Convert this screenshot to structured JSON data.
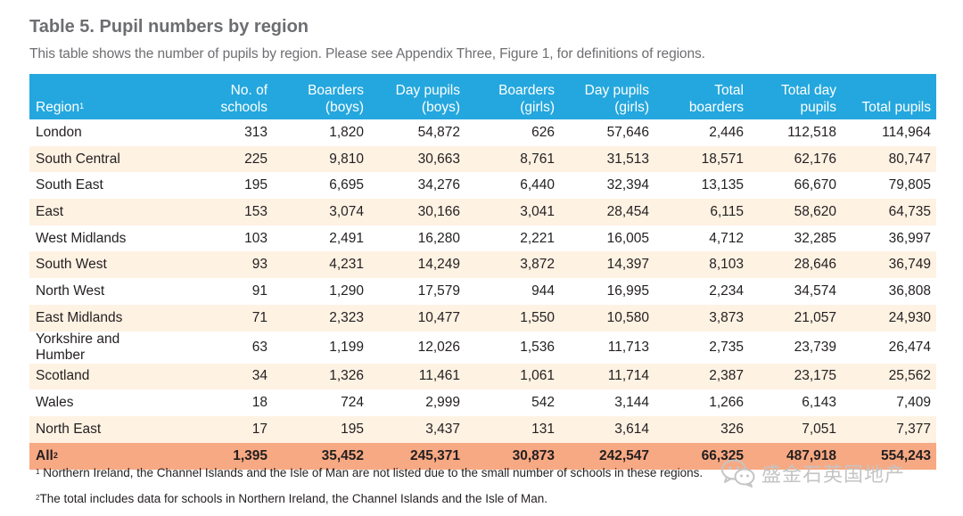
{
  "title": "Table 5. Pupil numbers by region",
  "subtitle": "This table shows the number of pupils by region. Please see Appendix Three, Figure 1, for definitions of regions.",
  "header": {
    "region": "Region",
    "region_sup": "1",
    "schools_line1": "No. of",
    "schools_line2": "schools",
    "boarders_boys_line1": "Boarders",
    "boarders_boys_line2": "(boys)",
    "day_boys_line1": "Day pupils",
    "day_boys_line2": "(boys)",
    "boarders_girls_line1": "Boarders",
    "boarders_girls_line2": "(girls)",
    "day_girls_line1": "Day pupils",
    "day_girls_line2": "(girls)",
    "total_boarders_line1": "Total",
    "total_boarders_line2": "boarders",
    "total_day_line1": "Total day",
    "total_day_line2": "pupils",
    "total_pupils": "Total pupils"
  },
  "rows": [
    {
      "region": "London",
      "schools": "313",
      "boarders_boys": "1,820",
      "day_boys": "54,872",
      "boarders_girls": "626",
      "day_girls": "57,646",
      "total_boarders": "2,446",
      "total_day": "112,518",
      "total_pupils": "114,964"
    },
    {
      "region": "South Central",
      "schools": "225",
      "boarders_boys": "9,810",
      "day_boys": "30,663",
      "boarders_girls": "8,761",
      "day_girls": "31,513",
      "total_boarders": "18,571",
      "total_day": "62,176",
      "total_pupils": "80,747"
    },
    {
      "region": "South East",
      "schools": "195",
      "boarders_boys": "6,695",
      "day_boys": "34,276",
      "boarders_girls": "6,440",
      "day_girls": "32,394",
      "total_boarders": "13,135",
      "total_day": "66,670",
      "total_pupils": "79,805"
    },
    {
      "region": "East",
      "schools": "153",
      "boarders_boys": "3,074",
      "day_boys": "30,166",
      "boarders_girls": "3,041",
      "day_girls": "28,454",
      "total_boarders": "6,115",
      "total_day": "58,620",
      "total_pupils": "64,735"
    },
    {
      "region": "West Midlands",
      "schools": "103",
      "boarders_boys": "2,491",
      "day_boys": "16,280",
      "boarders_girls": "2,221",
      "day_girls": "16,005",
      "total_boarders": "4,712",
      "total_day": "32,285",
      "total_pupils": "36,997"
    },
    {
      "region": "South West",
      "schools": "93",
      "boarders_boys": "4,231",
      "day_boys": "14,249",
      "boarders_girls": "3,872",
      "day_girls": "14,397",
      "total_boarders": "8,103",
      "total_day": "28,646",
      "total_pupils": "36,749"
    },
    {
      "region": "North West",
      "schools": "91",
      "boarders_boys": "1,290",
      "day_boys": "17,579",
      "boarders_girls": "944",
      "day_girls": "16,995",
      "total_boarders": "2,234",
      "total_day": "34,574",
      "total_pupils": "36,808"
    },
    {
      "region": "East Midlands",
      "schools": "71",
      "boarders_boys": "2,323",
      "day_boys": "10,477",
      "boarders_girls": "1,550",
      "day_girls": "10,580",
      "total_boarders": "3,873",
      "total_day": "21,057",
      "total_pupils": "24,930"
    },
    {
      "region": "Yorkshire and Humber",
      "schools": "63",
      "boarders_boys": "1,199",
      "day_boys": "12,026",
      "boarders_girls": "1,536",
      "day_girls": "11,713",
      "total_boarders": "2,735",
      "total_day": "23,739",
      "total_pupils": "26,474"
    },
    {
      "region": "Scotland",
      "schools": "34",
      "boarders_boys": "1,326",
      "day_boys": "11,461",
      "boarders_girls": "1,061",
      "day_girls": "11,714",
      "total_boarders": "2,387",
      "total_day": "23,175",
      "total_pupils": "25,562"
    },
    {
      "region": "Wales",
      "schools": "18",
      "boarders_boys": "724",
      "day_boys": "2,999",
      "boarders_girls": "542",
      "day_girls": "3,144",
      "total_boarders": "1,266",
      "total_day": "6,143",
      "total_pupils": "7,409"
    },
    {
      "region": "North East",
      "schools": "17",
      "boarders_boys": "195",
      "day_boys": "3,437",
      "boarders_girls": "131",
      "day_girls": "3,614",
      "total_boarders": "326",
      "total_day": "7,051",
      "total_pupils": "7,377"
    }
  ],
  "total_row": {
    "region": "All",
    "region_sup": "2",
    "schools": "1,395",
    "boarders_boys": "35,452",
    "day_boys": "245,371",
    "boarders_girls": "30,873",
    "day_girls": "242,547",
    "total_boarders": "66,325",
    "total_day": "487,918",
    "total_pupils": "554,243"
  },
  "footnotes": [
    {
      "mark": "1",
      "text": "Northern Ireland, the Channel Islands and the Isle of Man are not listed due to the small number of schools in these regions."
    },
    {
      "mark": "2",
      "text": "The total includes data for schools in Northern Ireland, the Channel Islands and the Isle of Man."
    }
  ],
  "watermark": {
    "icon": "wechat-icon",
    "text": "盛金石英国地产"
  },
  "colors": {
    "header_bg": "#24a7de",
    "stripe_bg": "#fef2e3",
    "total_bg": "#f7a983",
    "title_text": "#6d6e71"
  }
}
